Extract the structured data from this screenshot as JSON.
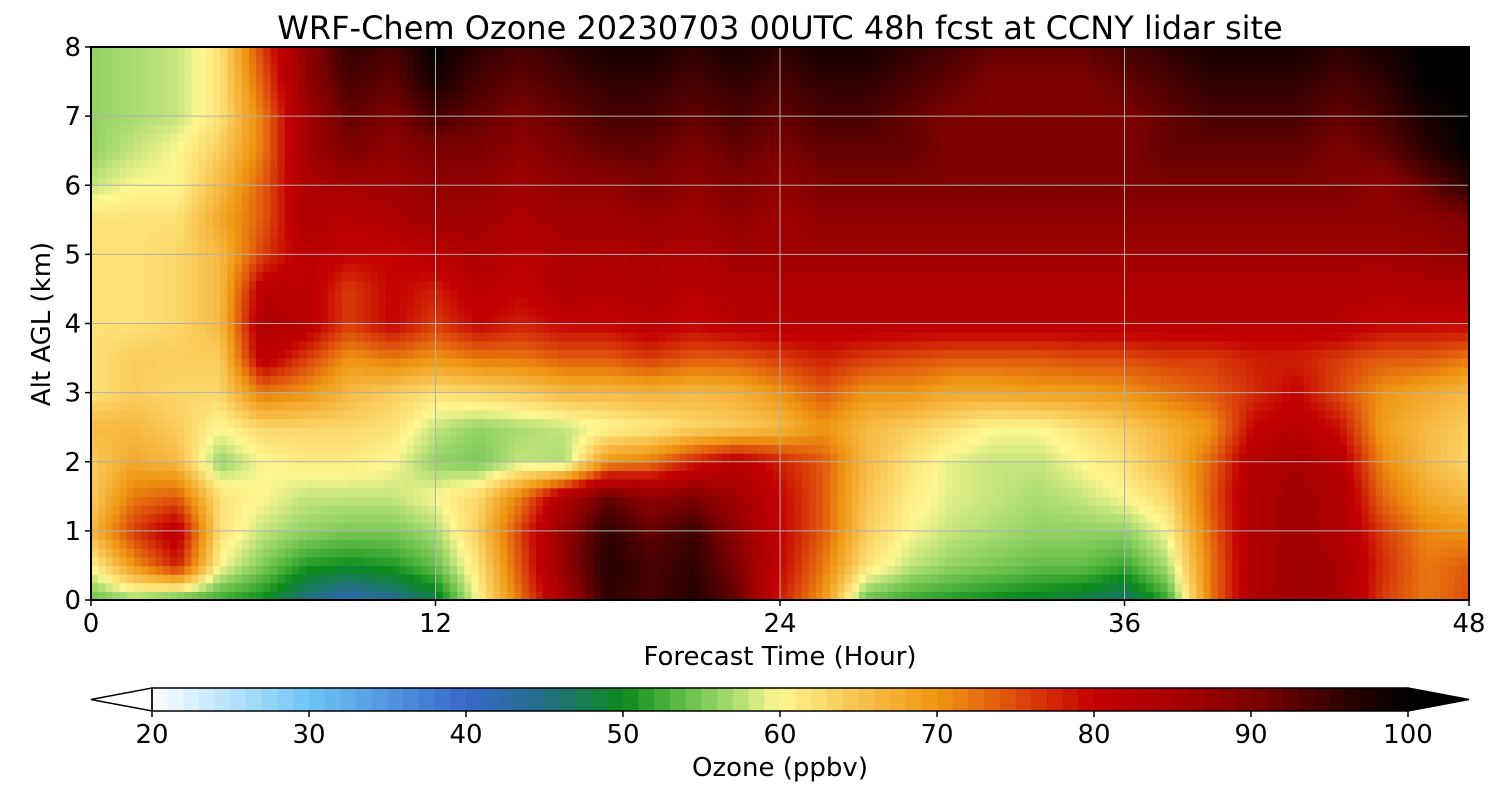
{
  "chart_data": {
    "type": "heatmap",
    "title": "WRF-Chem Ozone  20230703 00UTC 48h fcst at CCNY lidar site",
    "xlabel": "Forecast Time (Hour)",
    "ylabel": "Alt AGL (km)",
    "xlim": [
      0,
      48
    ],
    "ylim": [
      0,
      8
    ],
    "xticks": [
      "0",
      "12",
      "24",
      "36",
      "48"
    ],
    "yticks": [
      "0",
      "1",
      "2",
      "3",
      "4",
      "5",
      "6",
      "7",
      "8"
    ],
    "grid": true,
    "colorbar": {
      "label": "Ozone  (ppbv)",
      "min": 20,
      "max": 100,
      "extend": "both",
      "ticks": [
        "20",
        "30",
        "40",
        "50",
        "60",
        "70",
        "80",
        "90",
        "100"
      ],
      "stops": [
        [
          20,
          "#ffffff"
        ],
        [
          30,
          "#6ec5f5"
        ],
        [
          40,
          "#3768c9"
        ],
        [
          45,
          "#236e88"
        ],
        [
          50,
          "#0a8a1c"
        ],
        [
          53,
          "#4fb43c"
        ],
        [
          57,
          "#a9dc72"
        ],
        [
          60,
          "#fff791"
        ],
        [
          65,
          "#f8c24f"
        ],
        [
          70,
          "#ef9612"
        ],
        [
          75,
          "#dd4b0c"
        ],
        [
          80,
          "#c30000"
        ],
        [
          85,
          "#a90000"
        ],
        [
          90,
          "#7f0000"
        ],
        [
          95,
          "#3b0000"
        ],
        [
          100,
          "#000000"
        ]
      ]
    },
    "x": [
      0,
      1.5,
      3,
      4.5,
      6,
      7.5,
      9,
      10.5,
      12,
      13.5,
      15,
      16.5,
      18,
      19.5,
      21,
      22.5,
      24,
      25.5,
      27,
      28.5,
      30,
      31.5,
      33,
      34.5,
      36,
      37.5,
      39,
      40.5,
      42,
      43.5,
      45,
      46.5,
      48
    ],
    "y": [
      0,
      0.5,
      1,
      1.5,
      2,
      2.5,
      3,
      3.5,
      4,
      4.5,
      5,
      5.5,
      6,
      6.5,
      7,
      7.5,
      8
    ],
    "z": [
      [
        54,
        56,
        53,
        52,
        50,
        45,
        42,
        44,
        48,
        60,
        73,
        85,
        96,
        94,
        97,
        92,
        78,
        70,
        54,
        52,
        51,
        50,
        49,
        48,
        46,
        52,
        72,
        84,
        86,
        85,
        76,
        72,
        75
      ],
      [
        60,
        70,
        78,
        60,
        55,
        51,
        50,
        51,
        54,
        62,
        75,
        88,
        97,
        94,
        96,
        90,
        80,
        72,
        62,
        58,
        56,
        55,
        54,
        54,
        52,
        57,
        72,
        84,
        86,
        85,
        77,
        72,
        74
      ],
      [
        66,
        76,
        82,
        62,
        58,
        56,
        55,
        55,
        57,
        64,
        76,
        88,
        96,
        92,
        95,
        88,
        80,
        74,
        64,
        60,
        58,
        57,
        56,
        56,
        56,
        60,
        73,
        84,
        86,
        84,
        76,
        71,
        70
      ],
      [
        64,
        72,
        74,
        62,
        60,
        58,
        58,
        58,
        60,
        63,
        72,
        84,
        92,
        88,
        90,
        86,
        80,
        74,
        65,
        61,
        59,
        58,
        57,
        58,
        60,
        63,
        74,
        84,
        86,
        84,
        73,
        68,
        66
      ],
      [
        64,
        68,
        66,
        56,
        60,
        61,
        61,
        60,
        56,
        55,
        58,
        57,
        70,
        72,
        78,
        82,
        78,
        74,
        66,
        62,
        59,
        58,
        58,
        60,
        62,
        66,
        73,
        83,
        85,
        82,
        71,
        66,
        63
      ],
      [
        66,
        66,
        64,
        60,
        63,
        63,
        63,
        62,
        58,
        56,
        57,
        58,
        60,
        61,
        63,
        64,
        66,
        70,
        66,
        64,
        62,
        60,
        60,
        62,
        64,
        67,
        70,
        80,
        82,
        79,
        69,
        66,
        64
      ],
      [
        62,
        64,
        63,
        63,
        72,
        70,
        66,
        64,
        62,
        63,
        64,
        66,
        66,
        67,
        66,
        67,
        70,
        74,
        70,
        70,
        68,
        68,
        69,
        69,
        70,
        72,
        74,
        77,
        80,
        75,
        70,
        68,
        66
      ],
      [
        62,
        64,
        64,
        64,
        82,
        76,
        70,
        72,
        70,
        72,
        72,
        74,
        74,
        76,
        74,
        74,
        76,
        78,
        76,
        75,
        74,
        74,
        74,
        75,
        75,
        76,
        76,
        78,
        78,
        76,
        74,
        74,
        72
      ],
      [
        62,
        62,
        63,
        66,
        84,
        82,
        76,
        80,
        76,
        80,
        78,
        80,
        80,
        82,
        80,
        82,
        82,
        82,
        82,
        82,
        82,
        82,
        82,
        82,
        82,
        82,
        82,
        82,
        82,
        82,
        80,
        80,
        80
      ],
      [
        62,
        62,
        63,
        66,
        82,
        82,
        76,
        80,
        78,
        82,
        80,
        84,
        83,
        84,
        82,
        84,
        84,
        84,
        84,
        84,
        84,
        84,
        84,
        84,
        84,
        84,
        84,
        84,
        84,
        84,
        83,
        84,
        84
      ],
      [
        62,
        62,
        63,
        66,
        76,
        82,
        80,
        80,
        82,
        84,
        82,
        84,
        84,
        85,
        84,
        86,
        86,
        86,
        86,
        86,
        86,
        86,
        86,
        86,
        86,
        86,
        86,
        86,
        86,
        86,
        86,
        87,
        88
      ],
      [
        62,
        62,
        62,
        68,
        74,
        84,
        82,
        84,
        86,
        86,
        84,
        86,
        86,
        87,
        86,
        88,
        86,
        88,
        88,
        88,
        88,
        88,
        88,
        88,
        88,
        88,
        88,
        88,
        88,
        88,
        88,
        88,
        90
      ],
      [
        58,
        60,
        60,
        66,
        74,
        84,
        86,
        86,
        88,
        88,
        86,
        88,
        88,
        90,
        88,
        90,
        88,
        90,
        90,
        90,
        90,
        90,
        90,
        90,
        90,
        90,
        90,
        90,
        90,
        90,
        88,
        92,
        96
      ],
      [
        56,
        58,
        60,
        64,
        72,
        86,
        90,
        88,
        90,
        90,
        88,
        90,
        92,
        92,
        90,
        92,
        90,
        92,
        92,
        92,
        90,
        90,
        90,
        90,
        90,
        92,
        92,
        92,
        92,
        90,
        92,
        96,
        100
      ],
      [
        56,
        57,
        58,
        62,
        72,
        86,
        92,
        90,
        94,
        92,
        90,
        92,
        94,
        94,
        92,
        94,
        92,
        94,
        94,
        92,
        90,
        90,
        90,
        90,
        90,
        92,
        94,
        94,
        94,
        92,
        94,
        98,
        100
      ],
      [
        56,
        57,
        58,
        62,
        74,
        88,
        94,
        92,
        98,
        94,
        92,
        94,
        96,
        96,
        94,
        96,
        94,
        96,
        96,
        94,
        92,
        90,
        90,
        90,
        92,
        94,
        96,
        96,
        96,
        94,
        96,
        100,
        100
      ],
      [
        56,
        57,
        58,
        62,
        76,
        88,
        96,
        94,
        100,
        96,
        94,
        96,
        98,
        98,
        96,
        98,
        96,
        98,
        98,
        96,
        94,
        92,
        92,
        92,
        94,
        96,
        98,
        98,
        98,
        96,
        98,
        100,
        100
      ]
    ]
  }
}
